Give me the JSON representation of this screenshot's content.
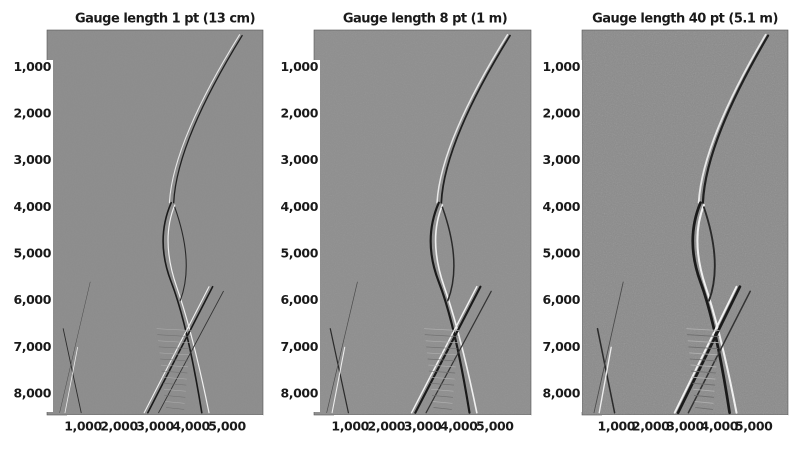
{
  "chart_data": [
    {
      "type": "heatmap",
      "title": "Gauge length 1 pt (13 cm)",
      "xlabel": "",
      "ylabel": "",
      "xlim": [
        0,
        6000
      ],
      "ylim": [
        8450,
        200
      ],
      "x_ticks": [
        "1,000",
        "2,000",
        "3,000",
        "4,000",
        "5,000"
      ],
      "y_ticks": [
        "1,000",
        "2,000",
        "3,000",
        "4,000",
        "5,000",
        "6,000",
        "7,000",
        "8,000"
      ],
      "colormap": "grayscale",
      "background": "#8c8c8c",
      "noise_level": 0.06
    },
    {
      "type": "heatmap",
      "title": "Gauge length 8 pt (1 m)",
      "xlabel": "",
      "ylabel": "",
      "xlim": [
        0,
        6000
      ],
      "ylim": [
        8450,
        200
      ],
      "x_ticks": [
        "1,000",
        "2,000",
        "3,000",
        "4,000",
        "5,000"
      ],
      "y_ticks": [
        "1,000",
        "2,000",
        "3,000",
        "4,000",
        "5,000",
        "6,000",
        "7,000",
        "8,000"
      ],
      "colormap": "grayscale",
      "background": "#8e8e8e",
      "noise_level": 0.12
    },
    {
      "type": "heatmap",
      "title": "Gauge length 40 pt (5.1 m)",
      "xlabel": "",
      "ylabel": "",
      "xlim": [
        0,
        6000
      ],
      "ylim": [
        8450,
        200
      ],
      "x_ticks": [
        "1,000",
        "2,000",
        "3,000",
        "4,000",
        "5,000"
      ],
      "y_ticks": [
        "1,000",
        "2,000",
        "3,000",
        "4,000",
        "5,000",
        "6,000",
        "7,000",
        "8,000"
      ],
      "colormap": "grayscale",
      "background": "#8a8a8a",
      "noise_level": 0.22
    }
  ]
}
